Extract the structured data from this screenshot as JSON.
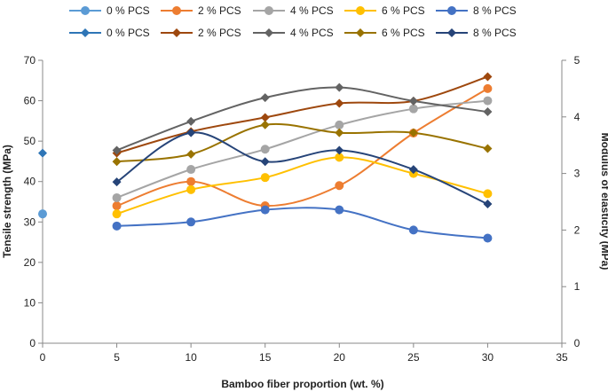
{
  "chart_data": {
    "type": "line",
    "title": "",
    "xlabel": "Bamboo fiber proportion (wt. %)",
    "ylabel": "Tensile strength (MPa)",
    "y2label": "Modulus of elasticity (MPa)",
    "xlim": [
      0,
      35
    ],
    "ylim": [
      0,
      70
    ],
    "y2lim": [
      0,
      5
    ],
    "xticks": [
      "0",
      "5",
      "10",
      "15",
      "20",
      "25",
      "30",
      "35"
    ],
    "yticks": [
      "0",
      "10",
      "20",
      "30",
      "40",
      "50",
      "60",
      "70"
    ],
    "y2ticks": [
      "0",
      "1",
      "2",
      "3",
      "4",
      "5"
    ],
    "legend_position": "top",
    "series": [
      {
        "name": "0 % PCS",
        "axis": "left",
        "marker": "circle",
        "color": "#5B9BD5",
        "x": [
          0
        ],
        "values": [
          32
        ]
      },
      {
        "name": "2 % PCS",
        "axis": "left",
        "marker": "circle",
        "color": "#ED7D31",
        "x": [
          5,
          10,
          15,
          20,
          25,
          30
        ],
        "values": [
          34,
          40,
          34,
          39,
          52,
          63
        ]
      },
      {
        "name": "4 % PCS",
        "axis": "left",
        "marker": "circle",
        "color": "#A5A5A5",
        "x": [
          5,
          10,
          15,
          20,
          25,
          30
        ],
        "values": [
          36,
          43,
          48,
          54,
          58,
          60
        ]
      },
      {
        "name": "6 % PCS",
        "axis": "left",
        "marker": "circle",
        "color": "#FFC000",
        "x": [
          5,
          10,
          15,
          20,
          25,
          30
        ],
        "values": [
          32,
          38,
          41,
          46,
          42,
          37
        ]
      },
      {
        "name": "8 % PCS",
        "axis": "left",
        "marker": "circle",
        "color": "#4472C4",
        "x": [
          5,
          10,
          15,
          20,
          25,
          30
        ],
        "values": [
          29,
          30,
          33,
          33,
          28,
          26
        ]
      },
      {
        "name": "0 % PCS",
        "axis": "right",
        "marker": "diamond",
        "color": "#2E75B6",
        "x": [
          0
        ],
        "values": [
          3.36
        ]
      },
      {
        "name": "2 % PCS",
        "axis": "right",
        "marker": "diamond",
        "color": "#9E480E",
        "x": [
          5,
          10,
          15,
          20,
          25,
          30
        ],
        "values": [
          3.36,
          3.74,
          3.99,
          4.24,
          4.28,
          4.71
        ]
      },
      {
        "name": "4 % PCS",
        "axis": "right",
        "marker": "diamond",
        "color": "#636363",
        "x": [
          5,
          10,
          15,
          20,
          25,
          30
        ],
        "values": [
          3.41,
          3.92,
          4.34,
          4.52,
          4.28,
          4.09
        ]
      },
      {
        "name": "6 % PCS",
        "axis": "right",
        "marker": "diamond",
        "color": "#997300",
        "x": [
          5,
          10,
          15,
          20,
          25,
          30
        ],
        "values": [
          3.21,
          3.34,
          3.86,
          3.72,
          3.72,
          3.44
        ]
      },
      {
        "name": "8 % PCS",
        "axis": "right",
        "marker": "diamond",
        "color": "#264478",
        "x": [
          5,
          10,
          15,
          20,
          25,
          30
        ],
        "values": [
          2.85,
          3.72,
          3.21,
          3.41,
          3.07,
          2.46
        ]
      }
    ]
  }
}
